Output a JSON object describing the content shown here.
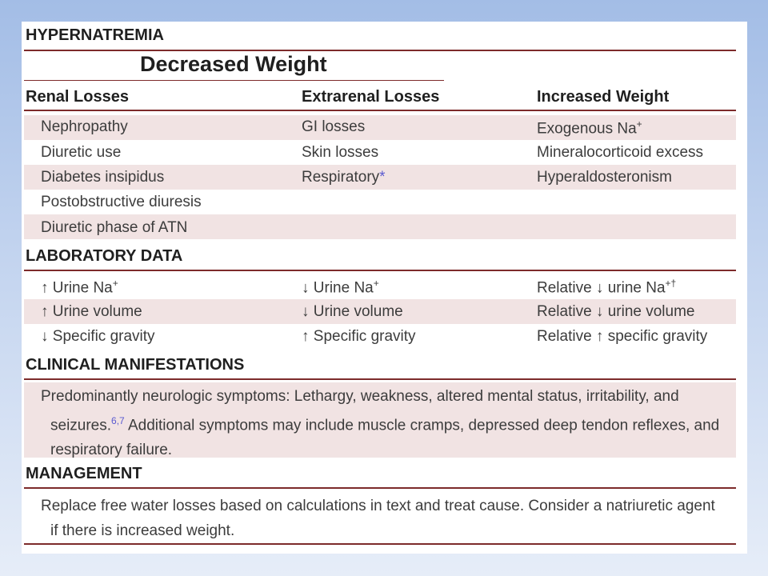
{
  "title": "HYPERNATREMIA",
  "group_header": "Decreased Weight",
  "columns": [
    "Renal Losses",
    "Extrarenal Losses",
    "Increased Weight"
  ],
  "causes": {
    "rows": [
      [
        "Nephropathy",
        "GI losses",
        "Exogenous Na"
      ],
      [
        "Diuretic use",
        "Skin losses",
        "Mineralocorticoid excess"
      ],
      [
        "Diabetes insipidus",
        "Respiratory",
        "Hyperaldosteronism"
      ],
      [
        "Postobstructive diuresis",
        "",
        ""
      ],
      [
        "Diuretic phase of ATN",
        "",
        ""
      ]
    ],
    "plus": "+",
    "asterisk": "*"
  },
  "lab": {
    "header": "LABORATORY DATA",
    "rows": [
      [
        "↑ Urine Na",
        "↓ Urine Na",
        "Relative ↓ urine Na"
      ],
      [
        "↑ Urine volume",
        "↓ Urine volume",
        "Relative ↓ urine volume"
      ],
      [
        "↓ Specific gravity",
        "↑ Specific gravity",
        "Relative ↑ specific gravity"
      ]
    ],
    "plus": "+",
    "plus_dagger": "+†"
  },
  "clinical": {
    "header": "CLINICAL MANIFESTATIONS",
    "text_a": "Predominantly neurologic symptoms: Lethargy, weakness, altered mental status, irritability, and seizures.",
    "ref": "6,7",
    "text_b": " Additional symptoms may include muscle cramps, depressed deep tendon reflexes, and respiratory failure."
  },
  "management": {
    "header": "MANAGEMENT",
    "text": "Replace free water losses based on calculations in text and treat cause. Consider a natriuretic agent if there is increased weight."
  },
  "colors": {
    "rule": "#7d2b2b",
    "band": "#f1e3e3",
    "reference": "#5b5bd0"
  }
}
